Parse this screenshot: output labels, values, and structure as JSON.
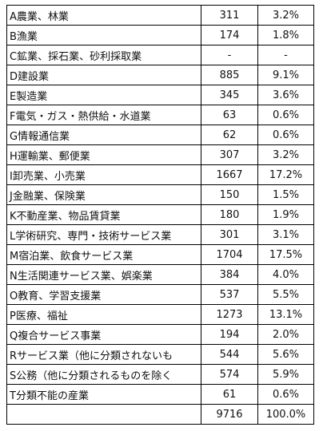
{
  "table": {
    "rows": [
      [
        "A農業、林業",
        "311",
        "3.2%"
      ],
      [
        "B漁業",
        "174",
        "1.8%"
      ],
      [
        "C鉱業、採石業、砂利採取業",
        "-",
        "-"
      ],
      [
        "D建設業",
        "885",
        "9.1%"
      ],
      [
        "E製造業",
        "345",
        "3.6%"
      ],
      [
        "F電気・ガス・熱供給・水道業",
        "63",
        "0.6%"
      ],
      [
        "G情報通信業",
        "62",
        "0.6%"
      ],
      [
        "H運輸業、郵便業",
        "307",
        "3.2%"
      ],
      [
        "I卸売業、小売業",
        "1667",
        "17.2%"
      ],
      [
        "J金融業、保険業",
        "150",
        "1.5%"
      ],
      [
        "K不動産業、物品賃貸業",
        "180",
        "1.9%"
      ],
      [
        "L学術研究、専門・技術サービス業",
        "301",
        "3.1%"
      ],
      [
        "M宿泊業、飲食サービス業",
        "1704",
        "17.5%"
      ],
      [
        "N生活関連サービス業、娯楽業",
        "384",
        "4.0%"
      ],
      [
        "O教育、学習支援業",
        "537",
        "5.5%"
      ],
      [
        "P医療、福祉",
        "1273",
        "13.1%"
      ],
      [
        "Q複合サービス事業",
        "194",
        "2.0%"
      ],
      [
        "Rサービス業（他に分類されないも",
        "544",
        "5.6%"
      ],
      [
        "S公務（他に分類されるものを除く",
        "574",
        "5.9%"
      ],
      [
        "T分類不能の産業",
        "61",
        "0.6%"
      ]
    ],
    "total": {
      "count": "9716",
      "share": "100.0%"
    }
  }
}
